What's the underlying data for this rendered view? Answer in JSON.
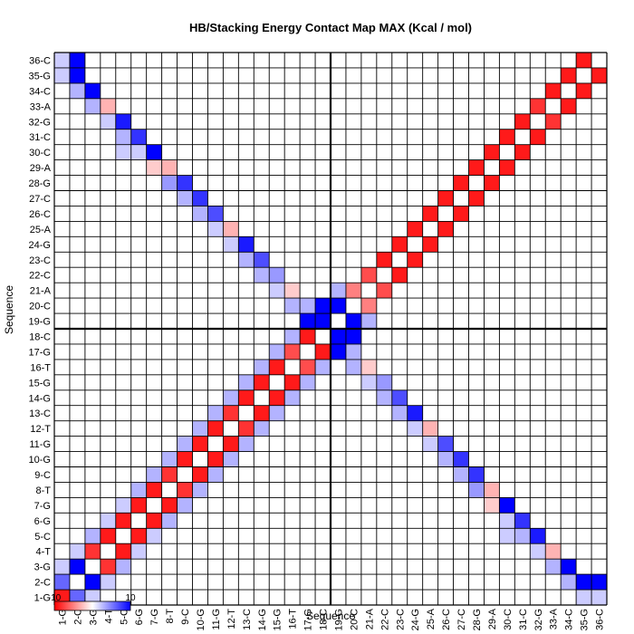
{
  "chart_data": {
    "type": "heatmap",
    "title": "HB/Stacking Energy Contact Map MAX (Kcal / mol)",
    "xlabel": "Sequence",
    "ylabel": "Sequence",
    "labels": [
      "1-G",
      "2-C",
      "3-G",
      "4-T",
      "5-C",
      "6-G",
      "7-G",
      "8-T",
      "9-C",
      "10-G",
      "11-G",
      "12-T",
      "13-C",
      "14-G",
      "15-G",
      "16-T",
      "17-G",
      "18-C",
      "19-G",
      "20-C",
      "21-A",
      "22-C",
      "23-C",
      "24-G",
      "25-A",
      "26-C",
      "27-C",
      "28-G",
      "29-A",
      "30-C",
      "31-C",
      "32-G",
      "33-A",
      "34-C",
      "35-G",
      "36-C"
    ],
    "color_scale": {
      "min_label": "-10",
      "max_label": "10",
      "low_color": "#ff0000",
      "mid_color": "#ffffff",
      "high_color": "#0000ff"
    },
    "divider_after_index": 18,
    "cells": [
      [
        1,
        1,
        -9
      ],
      [
        1,
        2,
        6
      ],
      [
        1,
        36,
        2
      ],
      [
        1,
        35,
        2
      ],
      [
        1,
        3,
        2
      ],
      [
        2,
        3,
        10
      ],
      [
        2,
        4,
        2
      ],
      [
        2,
        35,
        10
      ],
      [
        2,
        36,
        10
      ],
      [
        2,
        34,
        3
      ],
      [
        3,
        4,
        -8
      ],
      [
        3,
        5,
        3
      ],
      [
        3,
        34,
        10
      ],
      [
        3,
        33,
        3
      ],
      [
        4,
        5,
        -9
      ],
      [
        4,
        6,
        2
      ],
      [
        4,
        33,
        -3
      ],
      [
        4,
        32,
        2
      ],
      [
        5,
        6,
        -9
      ],
      [
        5,
        7,
        2
      ],
      [
        5,
        32,
        9
      ],
      [
        5,
        31,
        3
      ],
      [
        5,
        30,
        2
      ],
      [
        6,
        7,
        -9
      ],
      [
        6,
        8,
        3
      ],
      [
        6,
        31,
        8
      ],
      [
        6,
        30,
        2
      ],
      [
        7,
        8,
        -9
      ],
      [
        7,
        9,
        3
      ],
      [
        7,
        30,
        10
      ],
      [
        7,
        29,
        -2
      ],
      [
        8,
        9,
        -8
      ],
      [
        8,
        10,
        3
      ],
      [
        8,
        29,
        -3
      ],
      [
        8,
        28,
        4
      ],
      [
        9,
        10,
        -9
      ],
      [
        9,
        11,
        3
      ],
      [
        9,
        28,
        8
      ],
      [
        9,
        27,
        3
      ],
      [
        10,
        11,
        -9
      ],
      [
        10,
        12,
        3
      ],
      [
        10,
        27,
        8
      ],
      [
        10,
        26,
        3
      ],
      [
        11,
        12,
        -9
      ],
      [
        11,
        13,
        3
      ],
      [
        11,
        26,
        7
      ],
      [
        11,
        25,
        2
      ],
      [
        12,
        13,
        -8
      ],
      [
        12,
        14,
        3
      ],
      [
        12,
        25,
        -3
      ],
      [
        12,
        24,
        2
      ],
      [
        13,
        14,
        -9
      ],
      [
        13,
        15,
        3
      ],
      [
        13,
        24,
        9
      ],
      [
        13,
        23,
        3
      ],
      [
        14,
        15,
        -9
      ],
      [
        14,
        16,
        3
      ],
      [
        14,
        23,
        7
      ],
      [
        14,
        22,
        3
      ],
      [
        15,
        16,
        -9
      ],
      [
        15,
        17,
        3
      ],
      [
        15,
        22,
        4
      ],
      [
        15,
        21,
        2
      ],
      [
        16,
        17,
        -7
      ],
      [
        16,
        18,
        3
      ],
      [
        16,
        20,
        3
      ],
      [
        16,
        21,
        -2
      ],
      [
        17,
        18,
        -9
      ],
      [
        17,
        19,
        10
      ],
      [
        17,
        20,
        3
      ],
      [
        18,
        19,
        10
      ],
      [
        18,
        20,
        10
      ],
      [
        19,
        20,
        10
      ],
      [
        19,
        21,
        3
      ],
      [
        20,
        21,
        -5
      ],
      [
        21,
        22,
        -7
      ],
      [
        22,
        23,
        -9
      ],
      [
        23,
        24,
        -9
      ],
      [
        24,
        25,
        -9
      ],
      [
        25,
        26,
        -9
      ],
      [
        26,
        27,
        -9
      ],
      [
        27,
        28,
        -9
      ],
      [
        28,
        29,
        -9
      ],
      [
        29,
        30,
        -9
      ],
      [
        30,
        31,
        -9
      ],
      [
        31,
        32,
        -9
      ],
      [
        32,
        33,
        -8
      ],
      [
        33,
        34,
        -9
      ],
      [
        34,
        35,
        -9
      ],
      [
        35,
        36,
        -9
      ]
    ]
  }
}
